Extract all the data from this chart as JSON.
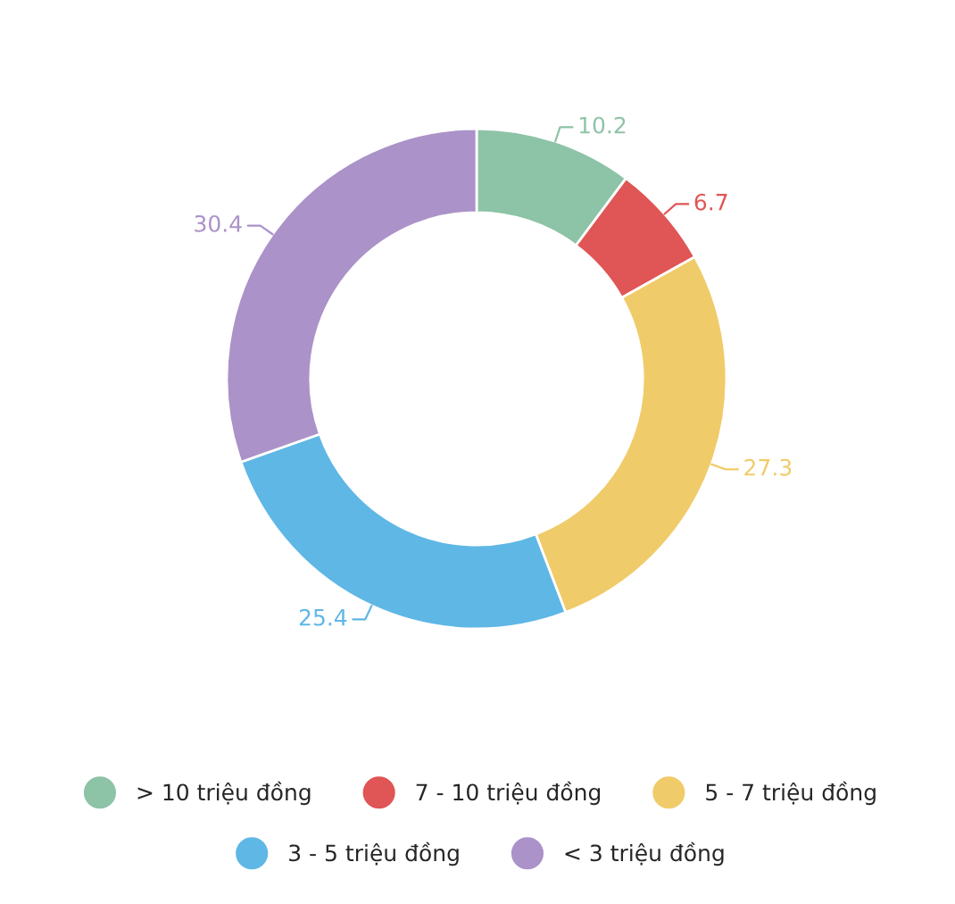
{
  "chart_data": {
    "type": "donut",
    "categories": [
      "> 10 triệu đồng",
      "7 - 10 triệu đồng",
      "5 - 7 triệu đồng",
      "3 - 5 triệu đồng",
      "< 3 triệu đồng"
    ],
    "values": [
      10.2,
      6.7,
      27.3,
      25.4,
      30.4
    ],
    "colors": [
      "#8dc3a7",
      "#e05555",
      "#f0cb69",
      "#5fb7e5",
      "#ab92c8"
    ],
    "data_labels": true,
    "legend": "bottom"
  }
}
